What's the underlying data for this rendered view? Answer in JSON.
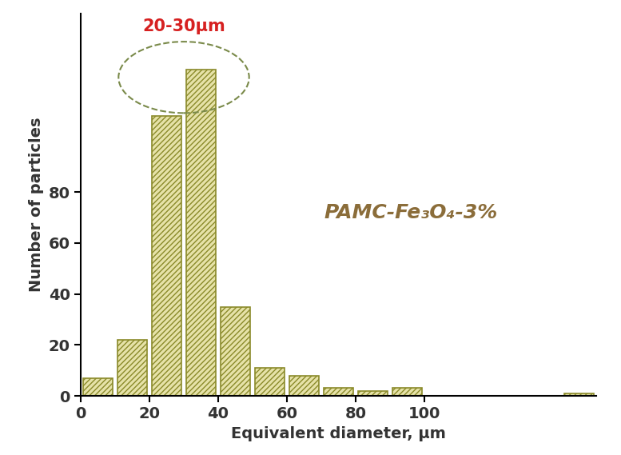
{
  "chart_data": {
    "type": "histogram",
    "x_label": "Equivalent diameter, μm",
    "y_label": "Number of particles",
    "bins": [
      0,
      10,
      20,
      30,
      40,
      50,
      60,
      70,
      80,
      90,
      100,
      110,
      120,
      130,
      140,
      150
    ],
    "counts": [
      7,
      22,
      110,
      128,
      35,
      11,
      8,
      3,
      2,
      3,
      0,
      0,
      0,
      0,
      1
    ],
    "color": "#e6e2a8",
    "xlim": [
      0,
      150
    ],
    "xticks": [
      0,
      20,
      40,
      60,
      80,
      100
    ],
    "ylim": [
      0,
      150
    ],
    "yticks": [
      0,
      20,
      40,
      60,
      80
    ],
    "annotations": [
      {
        "text": "20-30μm",
        "x": 30,
        "y": 145,
        "color": "#d62020"
      },
      {
        "text": "PAMC-Fe₃O₄-3%",
        "x": 96,
        "y": 72,
        "color": "#8b6d3a"
      }
    ]
  }
}
